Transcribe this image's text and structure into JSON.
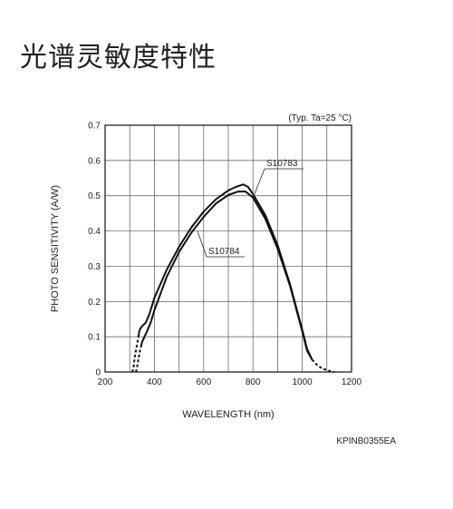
{
  "page": {
    "heading": "光谱灵敏度特性"
  },
  "chart_data": {
    "type": "line",
    "xlabel": "WAVELENGTH (nm)",
    "ylabel": "PHOTO SENSITIVITY (A/W)",
    "condition": "(Typ. Ta=25 °C)",
    "xlim": [
      200,
      1200
    ],
    "ylim": [
      0,
      0.7
    ],
    "xticks": [
      200,
      400,
      600,
      800,
      1000,
      1200
    ],
    "yticks": [
      0,
      0.1,
      0.2,
      0.3,
      0.4,
      0.5,
      0.6,
      0.7
    ],
    "ytick_labels": [
      "0",
      "0.1",
      "0.2",
      "0.3",
      "0.4",
      "0.5",
      "0.6",
      "0.7"
    ],
    "grid": true,
    "series": [
      {
        "name": "S10783",
        "solid": [
          [
            335,
            0.1
          ],
          [
            340,
            0.12
          ],
          [
            350,
            0.13
          ],
          [
            365,
            0.14
          ],
          [
            380,
            0.165
          ],
          [
            400,
            0.21
          ],
          [
            450,
            0.29
          ],
          [
            500,
            0.355
          ],
          [
            550,
            0.41
          ],
          [
            600,
            0.455
          ],
          [
            650,
            0.49
          ],
          [
            700,
            0.515
          ],
          [
            730,
            0.525
          ],
          [
            760,
            0.532
          ],
          [
            780,
            0.525
          ],
          [
            800,
            0.505
          ],
          [
            850,
            0.445
          ],
          [
            900,
            0.36
          ],
          [
            950,
            0.25
          ],
          [
            1000,
            0.12
          ],
          [
            1020,
            0.065
          ],
          [
            1040,
            0.035
          ]
        ],
        "dashed": [
          [
            310,
            0.0
          ],
          [
            315,
            0.01
          ],
          [
            320,
            0.04
          ],
          [
            330,
            0.08
          ],
          [
            335,
            0.1
          ]
        ],
        "dashed_tail": [
          [
            1040,
            0.035
          ],
          [
            1060,
            0.02
          ],
          [
            1080,
            0.01
          ],
          [
            1110,
            0.003
          ],
          [
            1130,
            0.0
          ]
        ]
      },
      {
        "name": "S10784",
        "solid": [
          [
            345,
            0.07
          ],
          [
            350,
            0.085
          ],
          [
            360,
            0.1
          ],
          [
            370,
            0.115
          ],
          [
            385,
            0.14
          ],
          [
            400,
            0.175
          ],
          [
            450,
            0.27
          ],
          [
            500,
            0.34
          ],
          [
            550,
            0.395
          ],
          [
            600,
            0.44
          ],
          [
            650,
            0.478
          ],
          [
            700,
            0.502
          ],
          [
            740,
            0.512
          ],
          [
            770,
            0.512
          ],
          [
            800,
            0.495
          ],
          [
            850,
            0.435
          ],
          [
            900,
            0.35
          ],
          [
            950,
            0.245
          ],
          [
            1000,
            0.115
          ],
          [
            1020,
            0.06
          ],
          [
            1040,
            0.035
          ]
        ],
        "dashed": [
          [
            325,
            0.0
          ],
          [
            330,
            0.015
          ],
          [
            335,
            0.035
          ],
          [
            340,
            0.055
          ],
          [
            345,
            0.07
          ]
        ]
      }
    ]
  },
  "footer": {
    "code": "KPINB0355EA"
  }
}
